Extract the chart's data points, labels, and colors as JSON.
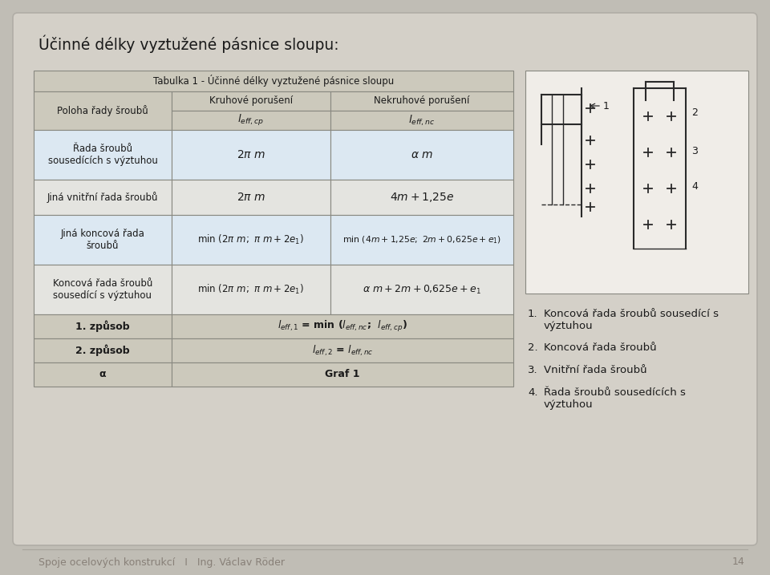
{
  "title": "Účinné délky vyztužené pásnice sloupu:",
  "bg_outer": "#c0bdb5",
  "bg_inner": "#d4d0c8",
  "footer_text": "Spoje ocelových konstrukcí   I   Ing. Václav Röder",
  "footer_page": "14",
  "table_title": "Tabulka 1 - Účinné délky vyztužené pásnice sloupu",
  "table_header_bg": "#ccc9bc",
  "table_row1_bg": "#dce8f2",
  "table_row2_bg": "#e4e4e0",
  "table_row3_bg": "#dce8f2",
  "table_row4_bg": "#e4e4e0",
  "table_bottom_bg": "#ccc9bc",
  "table_border": "#888880",
  "col_header": [
    "Poloha řady šroubů",
    "Kruhové porušení",
    "Nekruhové porušení"
  ],
  "rows_col0": [
    "Řada šroubů\nsousedících s výztuhou",
    "Jiná vnitřní řada šroubů",
    "Jiná koncová řada\nšroubů",
    "Koncová řada šroubů\nsousedící s výztuhou"
  ],
  "bottom_col0": [
    "1. způsob",
    "2. způsob",
    "α"
  ],
  "legend_items": [
    [
      "1.",
      "Koncová řada šroubů sousedící s\nvýztuhou"
    ],
    [
      "2.",
      "Koncová řada šroubů"
    ],
    [
      "3.",
      "Vnitřní řada šroubů"
    ],
    [
      "4.",
      "Řada šroubů sousedících s\nvýztuhou"
    ]
  ]
}
